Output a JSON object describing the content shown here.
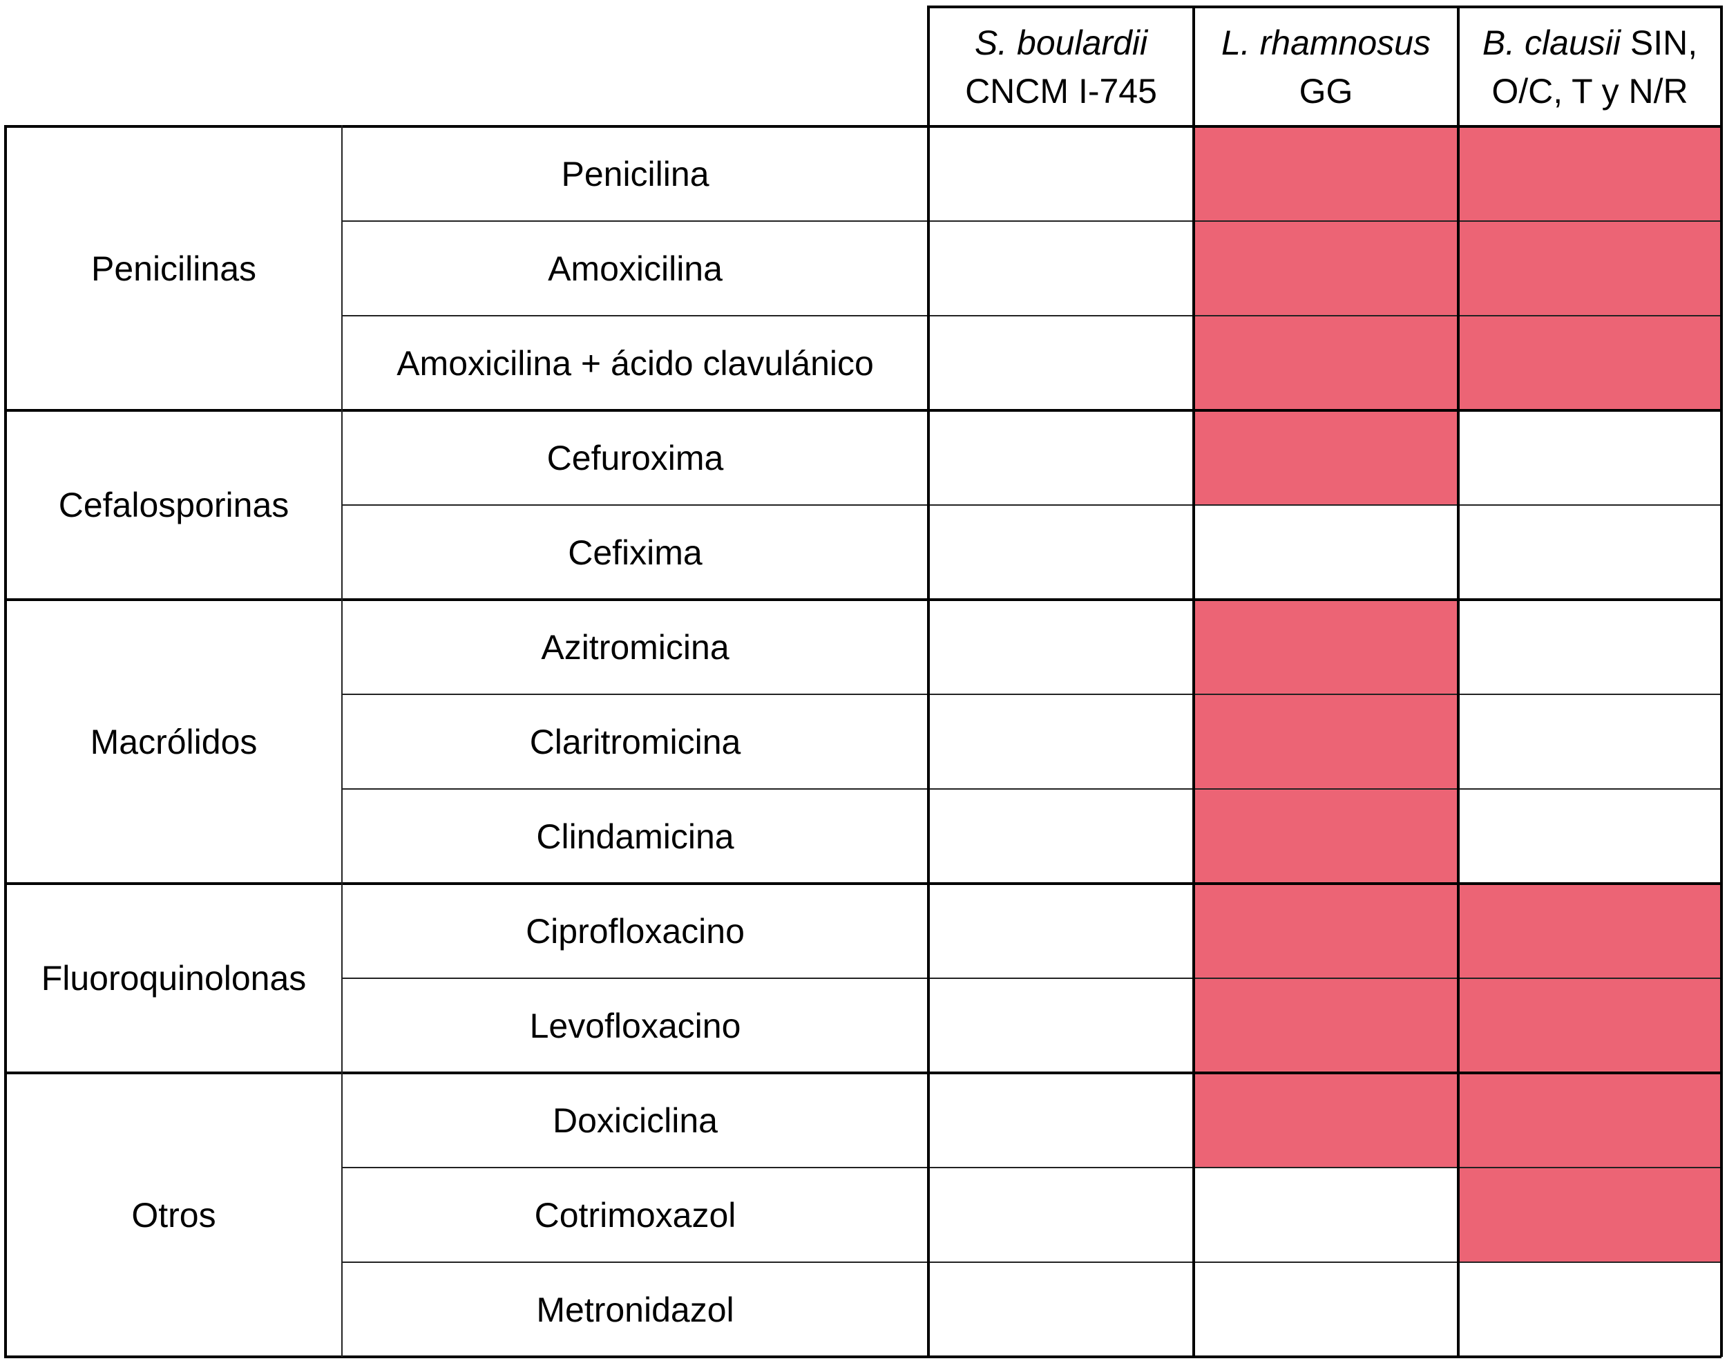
{
  "header": {
    "columns": [
      {
        "italic": "S. boulardii",
        "rest1": "",
        "line2": "CNCM I-745"
      },
      {
        "italic": "L. rhamnosus",
        "rest1": "",
        "line2": "GG"
      },
      {
        "italic": "B. clausii",
        "rest1": " SIN,",
        "line2": "O/C, T y N/R"
      }
    ]
  },
  "groups": [
    {
      "name": "Penicilinas",
      "rows": [
        {
          "drug": "Penicilina",
          "marks": [
            false,
            true,
            true
          ]
        },
        {
          "drug": "Amoxicilina",
          "marks": [
            false,
            true,
            true
          ]
        },
        {
          "drug": "Amoxicilina + ácido clavulánico",
          "marks": [
            false,
            true,
            true
          ]
        }
      ]
    },
    {
      "name": "Cefalosporinas",
      "rows": [
        {
          "drug": "Cefuroxima",
          "marks": [
            false,
            true,
            false
          ]
        },
        {
          "drug": "Cefixima",
          "marks": [
            false,
            false,
            false
          ]
        }
      ]
    },
    {
      "name": "Macrólidos",
      "rows": [
        {
          "drug": "Azitromicina",
          "marks": [
            false,
            true,
            false
          ]
        },
        {
          "drug": "Claritromicina",
          "marks": [
            false,
            true,
            false
          ]
        },
        {
          "drug": "Clindamicina",
          "marks": [
            false,
            true,
            false
          ]
        }
      ]
    },
    {
      "name": "Fluoroquinolonas",
      "rows": [
        {
          "drug": "Ciprofloxacino",
          "marks": [
            false,
            true,
            true
          ]
        },
        {
          "drug": "Levofloxacino",
          "marks": [
            false,
            true,
            true
          ]
        }
      ]
    },
    {
      "name": "Otros",
      "rows": [
        {
          "drug": "Doxiciclina",
          "marks": [
            false,
            true,
            true
          ]
        },
        {
          "drug": "Cotrimoxazol",
          "marks": [
            false,
            false,
            true
          ]
        },
        {
          "drug": "Metronidazol",
          "marks": [
            false,
            false,
            false
          ]
        }
      ]
    }
  ],
  "colors": {
    "marked": "#ec6475",
    "line": "#000000"
  }
}
